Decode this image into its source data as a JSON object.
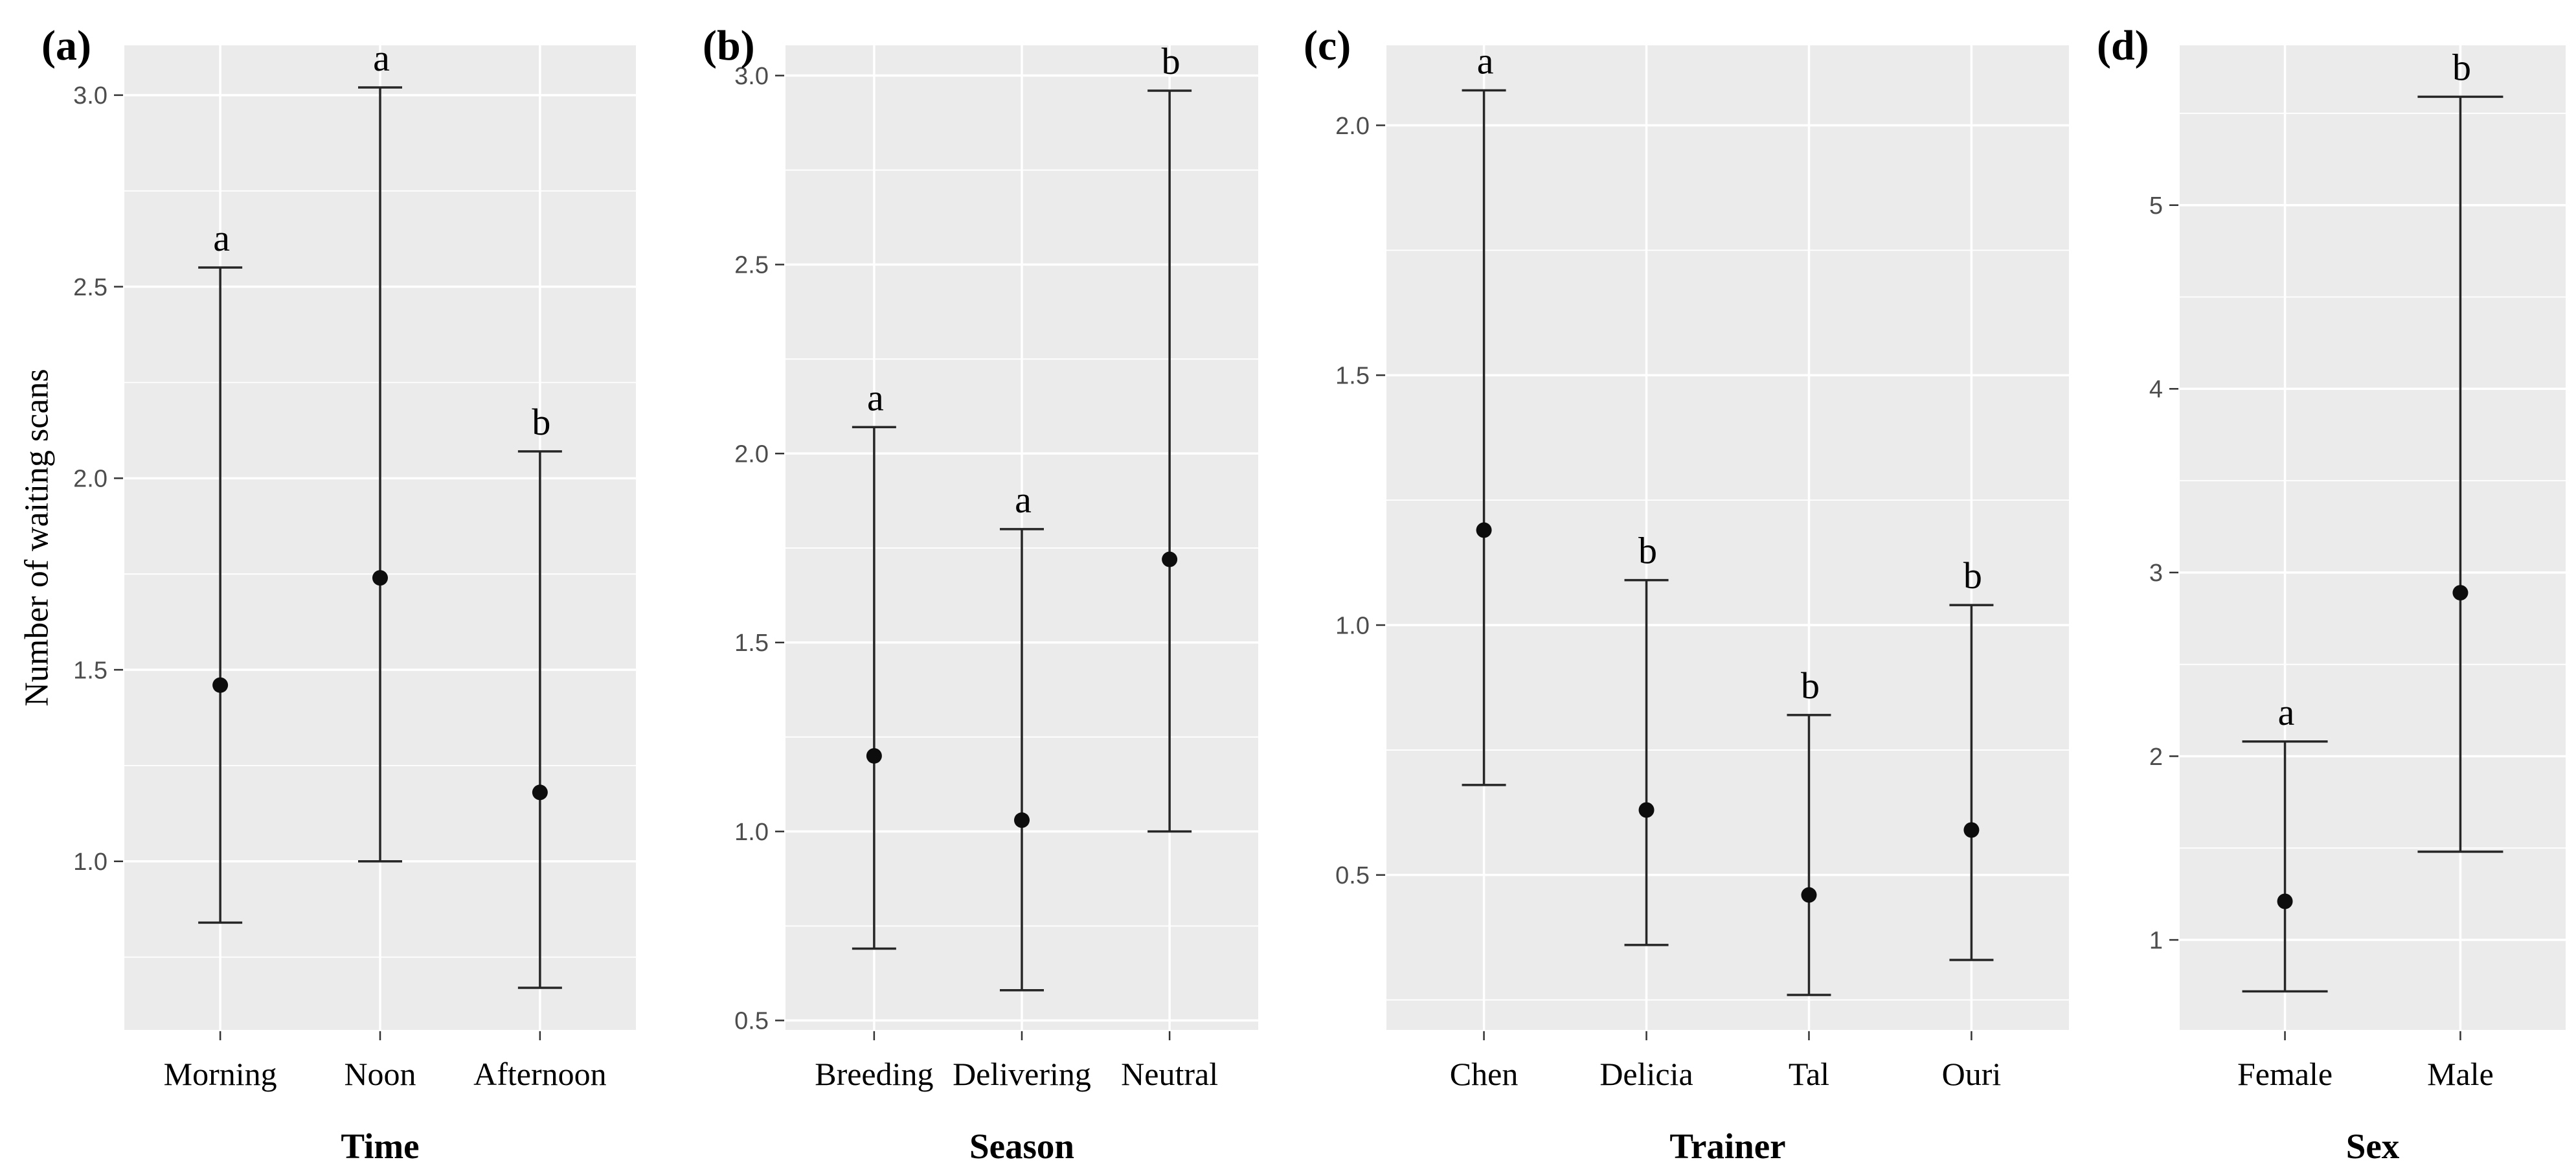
{
  "figure": {
    "ylabel": "Number of waiting scans",
    "colors": {
      "background": "#ffffff",
      "panel_background": "#ebebeb",
      "grid": "#ffffff",
      "bar": "#262626",
      "point": "#0d0d0d",
      "tick_text": "#4d4d4d",
      "tick_mark": "#333333",
      "text": "#000000"
    }
  },
  "chart_data": [
    {
      "type": "errorbar",
      "panel_label": "(a)",
      "xlabel": "Time",
      "ylabel": "Number of waiting scans",
      "categories": [
        "Morning",
        "Noon",
        "Afternoon"
      ],
      "means": [
        1.46,
        1.74,
        1.18
      ],
      "lower": [
        0.84,
        1.0,
        0.67
      ],
      "upper": [
        2.55,
        3.02,
        2.07
      ],
      "sig_letters": [
        "a",
        "a",
        "b"
      ],
      "ytick_values": [
        1.0,
        1.5,
        2.0,
        2.5,
        3.0
      ],
      "ytick_labels": [
        "1.0",
        "1.5",
        "2.0",
        "2.5",
        "3.0"
      ],
      "ylim": [
        0.56,
        3.13
      ],
      "grid": true,
      "legend": "none"
    },
    {
      "type": "errorbar",
      "panel_label": "(b)",
      "xlabel": "Season",
      "ylabel": "Number of waiting scans",
      "categories": [
        "Breeding",
        "Delivering",
        "Neutral"
      ],
      "means": [
        1.2,
        1.03,
        1.72
      ],
      "lower": [
        0.69,
        0.58,
        1.0
      ],
      "upper": [
        2.07,
        1.8,
        2.96
      ],
      "sig_letters": [
        "a",
        "a",
        "b"
      ],
      "ytick_values": [
        0.5,
        1.0,
        1.5,
        2.0,
        2.5,
        3.0
      ],
      "ytick_labels": [
        "0.5",
        "1.0",
        "1.5",
        "2.0",
        "2.5",
        "3.0"
      ],
      "ylim": [
        0.475,
        3.08
      ],
      "grid": true,
      "legend": "none"
    },
    {
      "type": "errorbar",
      "panel_label": "(c)",
      "xlabel": "Trainer",
      "ylabel": "Number of waiting scans",
      "categories": [
        "Chen",
        "Delicia",
        "Tal",
        "Ouri"
      ],
      "means": [
        1.19,
        0.63,
        0.46,
        0.59
      ],
      "lower": [
        0.68,
        0.36,
        0.26,
        0.33
      ],
      "upper": [
        2.07,
        1.09,
        0.82,
        1.04
      ],
      "sig_letters": [
        "a",
        "b",
        "b",
        "b"
      ],
      "ytick_values": [
        0.5,
        1.0,
        1.5,
        2.0
      ],
      "ytick_labels": [
        "0.5",
        "1.0",
        "1.5",
        "2.0"
      ],
      "ylim": [
        0.19,
        2.16
      ],
      "grid": true,
      "legend": "none"
    },
    {
      "type": "errorbar",
      "panel_label": "(d)",
      "xlabel": "Sex",
      "ylabel": "Number of waiting scans",
      "categories": [
        "Female",
        "Male"
      ],
      "means": [
        1.21,
        2.89
      ],
      "lower": [
        0.72,
        1.48
      ],
      "upper": [
        2.08,
        5.59
      ],
      "sig_letters": [
        "a",
        "b"
      ],
      "ytick_values": [
        1,
        2,
        3,
        4,
        5
      ],
      "ytick_labels": [
        "1",
        "2",
        "3",
        "4",
        "5"
      ],
      "ylim": [
        0.51,
        5.87
      ],
      "grid": true,
      "legend": "none"
    }
  ]
}
